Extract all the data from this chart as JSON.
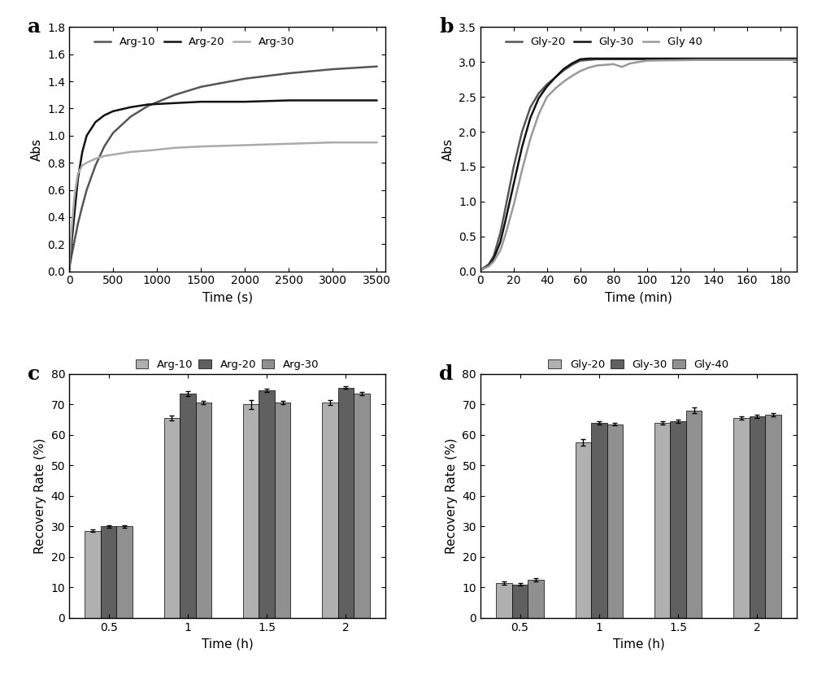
{
  "panel_a": {
    "label": "a",
    "xlabel": "Time (s)",
    "ylabel": "Abs",
    "xlim": [
      0,
      3600
    ],
    "ylim": [
      0.0,
      1.8
    ],
    "xticks": [
      0,
      500,
      1000,
      1500,
      2000,
      2500,
      3000,
      3500
    ],
    "yticks": [
      0.0,
      0.2,
      0.4,
      0.6,
      0.8,
      1.0,
      1.2,
      1.4,
      1.6,
      1.8
    ],
    "series": [
      {
        "label": "Arg-10",
        "color": "#555555",
        "x": [
          0,
          10,
          30,
          60,
          100,
          150,
          200,
          300,
          400,
          500,
          700,
          900,
          1200,
          1500,
          2000,
          2500,
          3000,
          3500
        ],
        "y": [
          0.0,
          0.05,
          0.12,
          0.22,
          0.35,
          0.48,
          0.6,
          0.78,
          0.92,
          1.02,
          1.14,
          1.22,
          1.3,
          1.36,
          1.42,
          1.46,
          1.49,
          1.51
        ]
      },
      {
        "label": "Arg-20",
        "color": "#111111",
        "x": [
          0,
          10,
          30,
          60,
          100,
          150,
          200,
          300,
          400,
          500,
          700,
          900,
          1200,
          1500,
          2000,
          2500,
          3000,
          3500
        ],
        "y": [
          0.0,
          0.08,
          0.22,
          0.42,
          0.68,
          0.88,
          1.0,
          1.1,
          1.15,
          1.18,
          1.21,
          1.23,
          1.24,
          1.25,
          1.25,
          1.26,
          1.26,
          1.26
        ]
      },
      {
        "label": "Arg-30",
        "color": "#aaaaaa",
        "x": [
          0,
          10,
          30,
          60,
          100,
          150,
          200,
          300,
          400,
          500,
          700,
          900,
          1200,
          1500,
          2000,
          2500,
          3000,
          3500
        ],
        "y": [
          0.0,
          0.12,
          0.32,
          0.55,
          0.72,
          0.78,
          0.8,
          0.83,
          0.85,
          0.86,
          0.88,
          0.89,
          0.91,
          0.92,
          0.93,
          0.94,
          0.95,
          0.95
        ]
      }
    ]
  },
  "panel_b": {
    "label": "b",
    "xlabel": "Time (min)",
    "ylabel": "Abs",
    "xlim": [
      0,
      190
    ],
    "ylim": [
      0.0,
      3.5
    ],
    "xticks": [
      0,
      20,
      40,
      60,
      80,
      100,
      120,
      140,
      160,
      180
    ],
    "yticks": [
      0.0,
      0.5,
      1.0,
      1.5,
      2.0,
      2.5,
      3.0,
      3.5
    ],
    "series": [
      {
        "label": "Gly-20",
        "color": "#555555",
        "x": [
          0,
          2,
          5,
          8,
          12,
          15,
          20,
          25,
          30,
          35,
          40,
          45,
          50,
          55,
          60,
          65,
          70,
          80,
          100,
          130,
          190
        ],
        "y": [
          0.02,
          0.05,
          0.1,
          0.22,
          0.55,
          0.9,
          1.5,
          2.0,
          2.35,
          2.55,
          2.68,
          2.78,
          2.88,
          2.96,
          3.02,
          3.03,
          3.04,
          3.04,
          3.04,
          3.04,
          3.04
        ]
      },
      {
        "label": "Gly-30",
        "color": "#111111",
        "x": [
          0,
          2,
          5,
          8,
          12,
          15,
          20,
          25,
          30,
          35,
          40,
          45,
          50,
          55,
          60,
          65,
          70,
          80,
          100,
          130,
          190
        ],
        "y": [
          0.02,
          0.04,
          0.08,
          0.18,
          0.42,
          0.72,
          1.25,
          1.78,
          2.2,
          2.48,
          2.65,
          2.78,
          2.9,
          2.98,
          3.04,
          3.05,
          3.05,
          3.05,
          3.05,
          3.05,
          3.05
        ]
      },
      {
        "label": "Gly 40",
        "color": "#999999",
        "x": [
          0,
          2,
          5,
          8,
          12,
          15,
          20,
          25,
          30,
          35,
          40,
          45,
          50,
          55,
          60,
          65,
          70,
          75,
          80,
          85,
          90,
          100,
          130,
          190
        ],
        "y": [
          0.02,
          0.04,
          0.07,
          0.14,
          0.3,
          0.52,
          0.95,
          1.45,
          1.9,
          2.25,
          2.5,
          2.62,
          2.72,
          2.8,
          2.87,
          2.92,
          2.95,
          2.96,
          2.97,
          2.93,
          2.98,
          3.02,
          3.03,
          3.03
        ]
      }
    ]
  },
  "panel_c": {
    "label": "c",
    "xlabel": "Time (h)",
    "ylabel": "Recovery Rate (%)",
    "ylim": [
      0,
      80
    ],
    "yticks": [
      0,
      10,
      20,
      30,
      40,
      50,
      60,
      70,
      80
    ],
    "groups": [
      "0.5",
      "1",
      "1.5",
      "2"
    ],
    "bar_colors": [
      "#b0b0b0",
      "#606060",
      "#909090"
    ],
    "series": [
      {
        "label": "Arg-10",
        "values": [
          28.5,
          65.5,
          70.0,
          70.5
        ],
        "errors": [
          0.4,
          0.8,
          1.5,
          0.8
        ]
      },
      {
        "label": "Arg-20",
        "values": [
          30.0,
          73.5,
          74.5,
          75.5
        ],
        "errors": [
          0.4,
          0.8,
          0.5,
          0.5
        ]
      },
      {
        "label": "Arg-30",
        "values": [
          30.0,
          70.5,
          70.5,
          73.5
        ],
        "errors": [
          0.4,
          0.5,
          0.5,
          0.5
        ]
      }
    ]
  },
  "panel_d": {
    "label": "d",
    "xlabel": "Time (h)",
    "ylabel": "Recovery Rate (%)",
    "ylim": [
      0,
      80
    ],
    "yticks": [
      0,
      10,
      20,
      30,
      40,
      50,
      60,
      70,
      80
    ],
    "groups": [
      "0.5",
      "1",
      "1.5",
      "2"
    ],
    "bar_colors": [
      "#b0b0b0",
      "#606060",
      "#909090"
    ],
    "series": [
      {
        "label": "Gly-20",
        "values": [
          11.5,
          57.5,
          64.0,
          65.5
        ],
        "errors": [
          0.5,
          1.0,
          0.5,
          0.5
        ]
      },
      {
        "label": "Gly-30",
        "values": [
          11.0,
          64.0,
          64.5,
          66.0
        ],
        "errors": [
          0.5,
          0.5,
          0.5,
          0.5
        ]
      },
      {
        "label": "Gly-40",
        "values": [
          12.5,
          63.5,
          68.0,
          66.5
        ],
        "errors": [
          0.5,
          0.5,
          1.0,
          0.5
        ]
      }
    ]
  }
}
